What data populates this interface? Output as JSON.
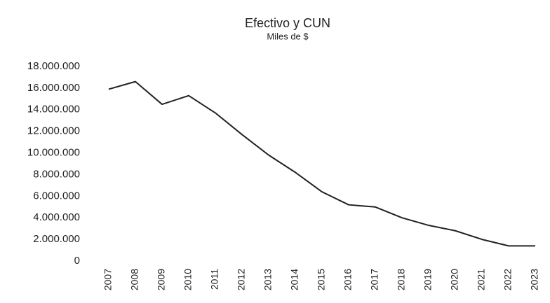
{
  "chart_data": {
    "type": "line",
    "title": "Efectivo y CUN",
    "subtitle": "Miles de $",
    "categories": [
      "2007",
      "2008",
      "2009",
      "2010",
      "2011",
      "2012",
      "2013",
      "2014",
      "2015",
      "2016",
      "2017",
      "2018",
      "2019",
      "2020",
      "2021",
      "2022",
      "2023"
    ],
    "series": [
      {
        "name": "Efectivo y CUN",
        "color": "#222222",
        "values": [
          15900000,
          16600000,
          14500000,
          15300000,
          13700000,
          11700000,
          9800000,
          8200000,
          6400000,
          5200000,
          5000000,
          4000000,
          3300000,
          2800000,
          2000000,
          1400000,
          1400000
        ]
      }
    ],
    "ylim": [
      0,
      18000000
    ],
    "yticks": [
      0,
      {
        "value": 2000000,
        "label": "2.000.000"
      },
      {
        "value": 4000000,
        "label": "4.000.000"
      },
      {
        "value": 6000000,
        "label": "6.000.000"
      },
      {
        "value": 8000000,
        "label": "8.000.000"
      },
      {
        "value": 10000000,
        "label": "10.000.000"
      },
      {
        "value": 12000000,
        "label": "12.000.000"
      },
      {
        "value": 14000000,
        "label": "14.000.000"
      },
      {
        "value": 16000000,
        "label": "16.000.000"
      },
      {
        "value": 18000000,
        "label": "18.000.000"
      }
    ],
    "grid": false
  }
}
